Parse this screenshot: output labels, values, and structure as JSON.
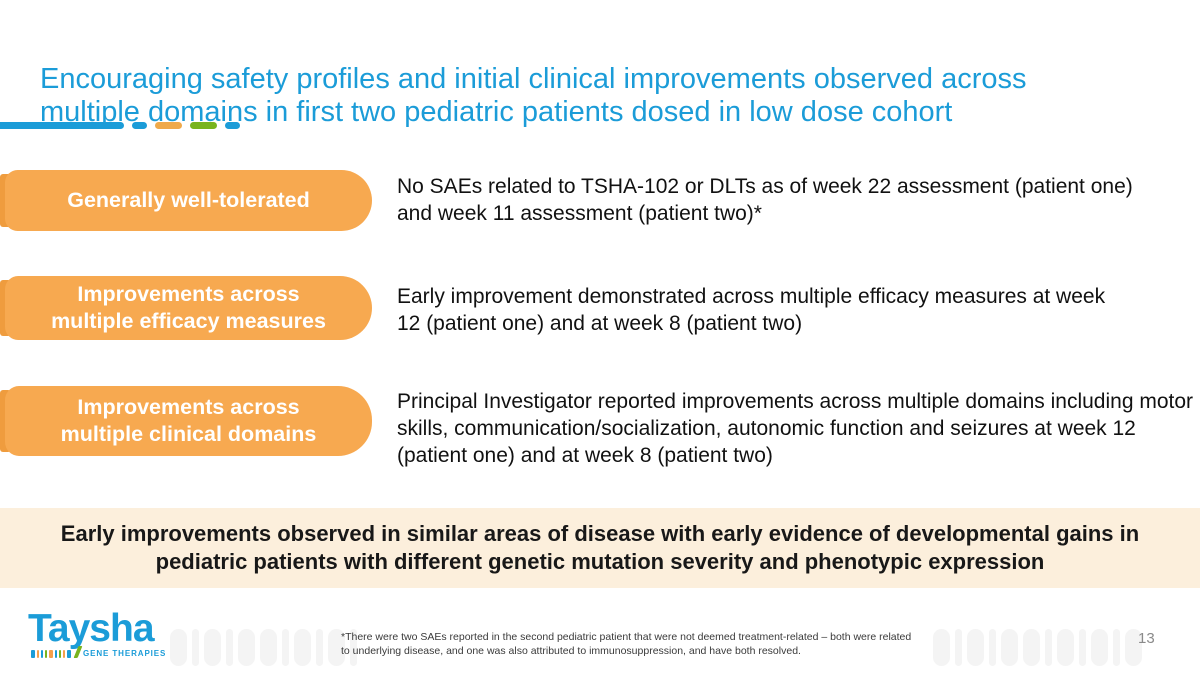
{
  "slide": {
    "title_lines": [
      "Encouraging safety profiles and initial clinical improvements observed across",
      "multiple domains in first two pediatric patients dosed in low dose cohort"
    ],
    "rows": [
      {
        "pill": "Generally well-tolerated",
        "text": "No SAEs related to TSHA-102 or DLTs as of week 22 assessment (patient one) and week 11 assessment (patient two)*"
      },
      {
        "pill": "Improvements across multiple efficacy measures",
        "text": "Early improvement demonstrated across multiple efficacy measures at week 12 (patient one) and at week 8 (patient two)"
      },
      {
        "pill": "Improvements across multiple clinical domains",
        "text": "Principal Investigator reported improvements across multiple domains including motor skills, communication/socialization, autonomic function and seizures at week 12 (patient one) and at week 8 (patient two)"
      }
    ],
    "banner_lines": [
      "Early improvements observed in similar areas of disease with early evidence of developmental gains in",
      "pediatric patients with different genetic mutation severity and phenotypic expression"
    ],
    "footer": {
      "logo_name": "Taysha",
      "logo_tagline": "GENE THERAPIES",
      "footnote": "*There were two SAEs reported in the second pediatric patient that were not deemed treatment-related – both were related to underlying disease, and one was also attributed to immunosuppression, and have both resolved.",
      "page_number": "13"
    },
    "colors": {
      "accent_blue": "#1B9CD8",
      "accent_orange": "#F7A950",
      "accent_orange_dark": "#EF9C3E",
      "accent_green": "#78B41E",
      "banner_bg": "#FCEFDC"
    }
  }
}
